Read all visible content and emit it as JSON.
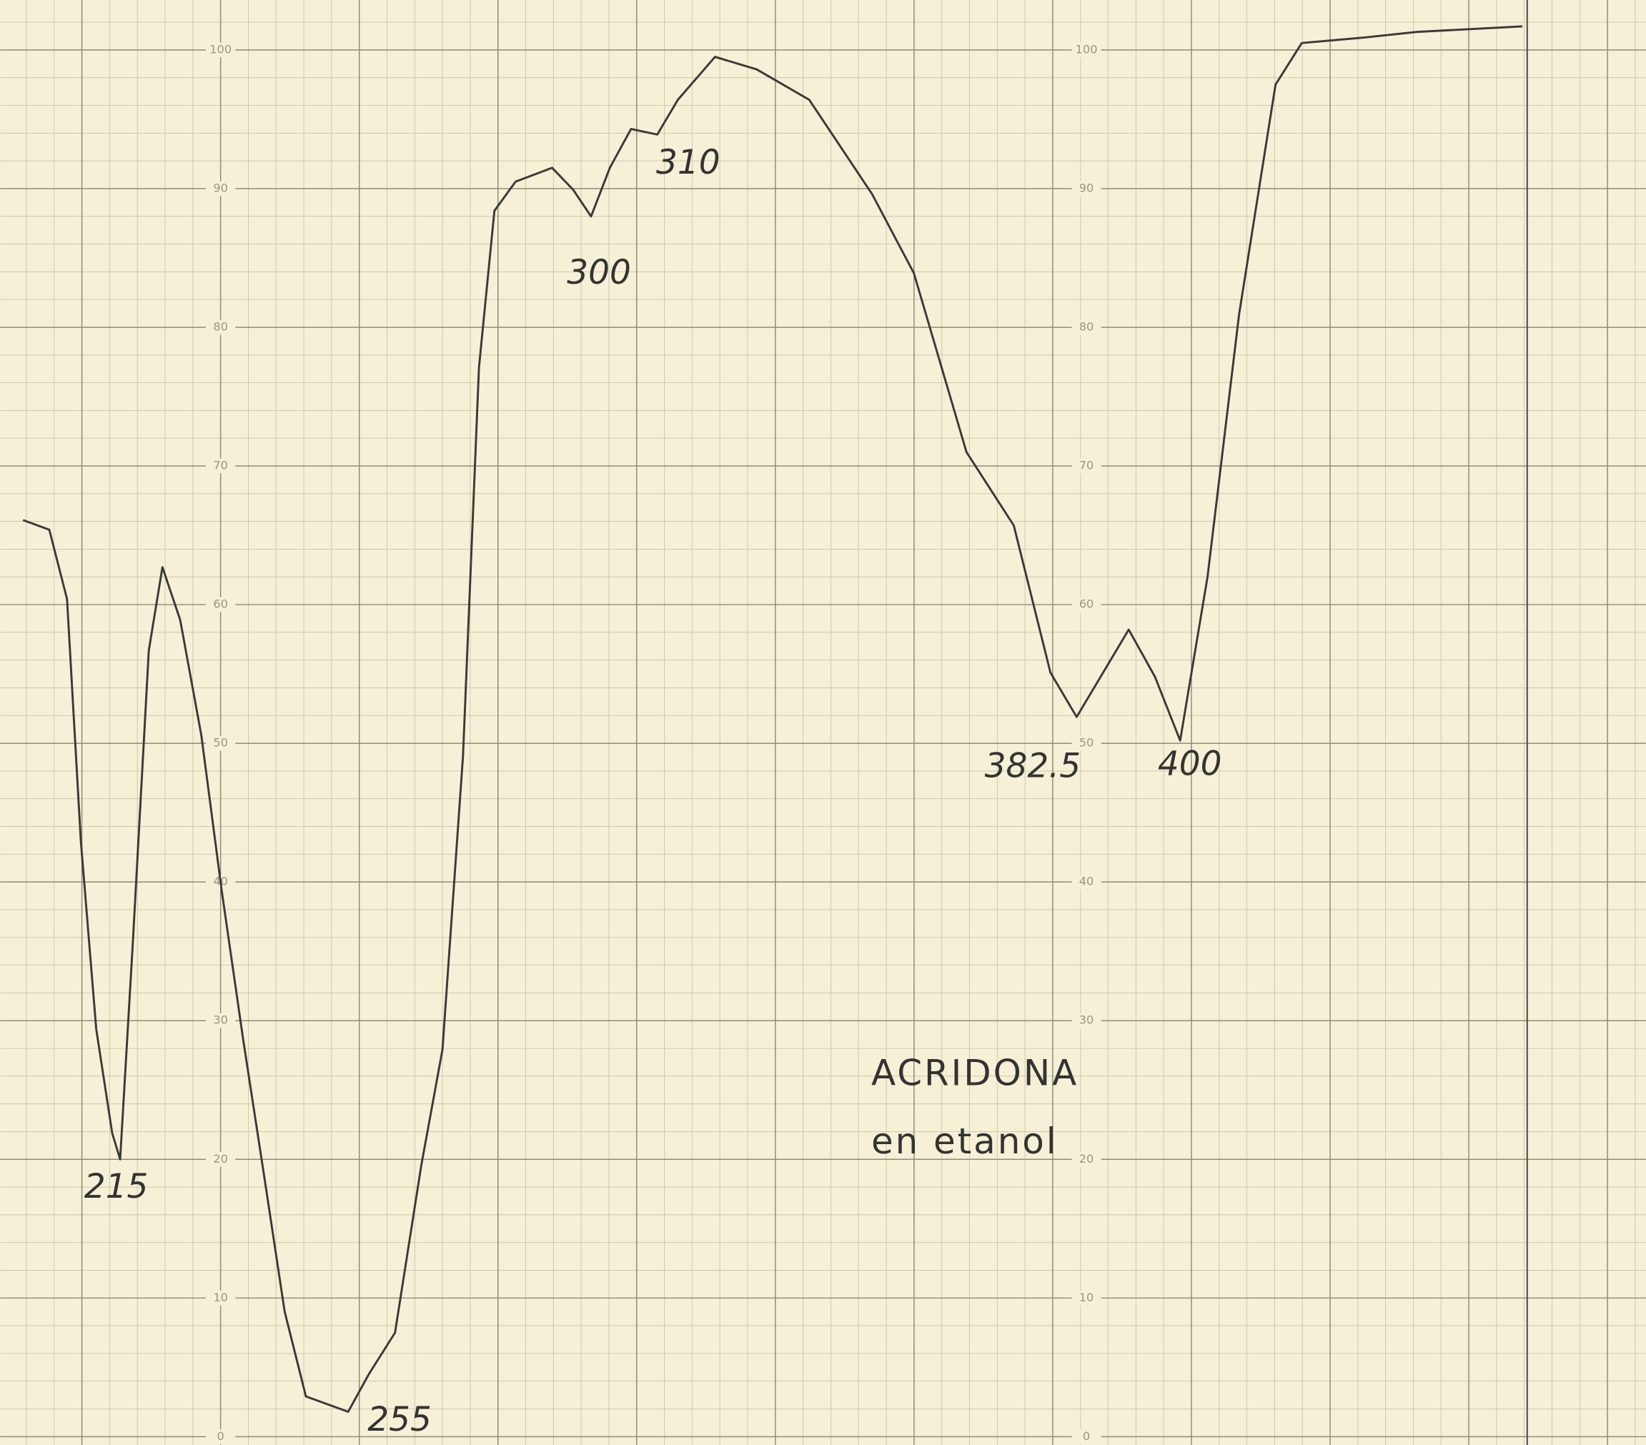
{
  "chart_data": {
    "type": "line",
    "annotations": [
      "215",
      "255",
      "300",
      "310",
      "382.5",
      "400",
      "ACRIDONA",
      "en etanol"
    ],
    "x": [
      198,
      202.6,
      205.7,
      208.1,
      210.8,
      213.6,
      215,
      217.2,
      220,
      222.4,
      225.5,
      229.2,
      232.8,
      236.5,
      240.2,
      243.8,
      247.5,
      254.9,
      258.5,
      263.1,
      267.7,
      271.4,
      275,
      277.8,
      280.5,
      284.2,
      290.6,
      294.3,
      297.4,
      300.7,
      304.4,
      309,
      312.6,
      319.1,
      326.4,
      335.6,
      346.6,
      353.9,
      363.1,
      371.4,
      377.8,
      382.4,
      391.5,
      396.1,
      400.5,
      405.3,
      410.8,
      417.2,
      421.8,
      432.8,
      442,
      460.4
    ],
    "values": [
      66.1,
      65.4,
      60.4,
      43.0,
      29.4,
      21.9,
      20.0,
      35.5,
      56.7,
      62.7,
      58.9,
      50.6,
      39.3,
      28.7,
      18.8,
      9.0,
      2.9,
      1.8,
      4.5,
      7.5,
      19.6,
      27.9,
      49.1,
      77.1,
      88.4,
      90.5,
      91.5,
      89.9,
      88.0,
      91.5,
      94.3,
      93.9,
      96.4,
      99.5,
      98.6,
      96.4,
      89.6,
      83.9,
      71.0,
      65.7,
      55.1,
      51.9,
      58.2,
      54.8,
      50.2,
      62.0,
      80.9,
      97.5,
      100.5,
      100.9,
      101.3,
      101.7
    ],
    "color": "#3a3a3a",
    "xlim": [
      194,
      482
    ],
    "ylim": [
      -0.6,
      103.6
    ],
    "yticks": [
      0,
      10,
      20,
      30,
      40,
      50,
      60,
      70,
      80,
      90,
      100
    ],
    "grid": true
  }
}
